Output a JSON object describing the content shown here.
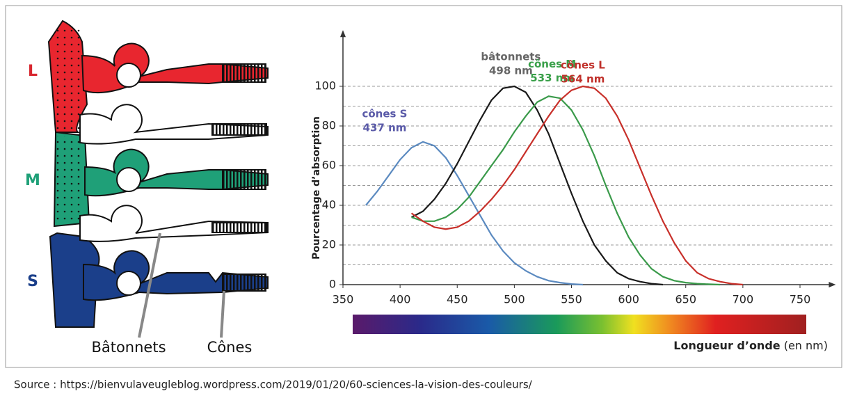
{
  "diagram": {
    "row_labels": [
      "L",
      "M",
      "S"
    ],
    "pointer_labels": [
      "Bâtonnets",
      "Cônes"
    ]
  },
  "chart_data": {
    "type": "line",
    "y_label": "Pourcentage d’absorption",
    "x_label": "Longueur d’onde",
    "x_unit": "(en nm)",
    "xlim": [
      350,
      760
    ],
    "ylim": [
      0,
      115
    ],
    "xticks": [
      350,
      400,
      450,
      500,
      550,
      600,
      650,
      700,
      750
    ],
    "yticks": [
      0,
      20,
      40,
      60,
      80,
      100
    ],
    "minor_yticks": [
      10,
      30,
      50,
      70,
      90
    ],
    "grid": true,
    "x": [
      370,
      380,
      390,
      400,
      410,
      420,
      430,
      440,
      450,
      460,
      470,
      480,
      490,
      500,
      510,
      520,
      530,
      540,
      550,
      560,
      570,
      580,
      590,
      600,
      610,
      620,
      630,
      640,
      650,
      660,
      670,
      680,
      690,
      700
    ],
    "series": [
      {
        "name": "cônes S",
        "peak": "437 nm",
        "color": "#5b8ac0",
        "label_color": "#5a5aa8",
        "values": [
          40,
          47,
          55,
          63,
          69,
          72,
          70,
          64,
          55,
          45,
          35,
          25,
          17,
          11,
          7,
          4,
          2,
          1,
          0.3,
          0,
          null,
          null,
          null,
          null,
          null,
          null,
          null,
          null,
          null,
          null,
          null,
          null,
          null,
          null
        ]
      },
      {
        "name": "bâtonnets",
        "peak": "498 nm",
        "color": "#1a1a1a",
        "label_color": "#666666",
        "values": [
          null,
          null,
          null,
          null,
          34,
          37,
          43,
          51,
          61,
          72,
          83,
          93,
          99,
          100,
          97,
          88,
          76,
          61,
          46,
          32,
          20,
          12,
          6,
          3,
          1.5,
          0.5,
          0,
          null,
          null,
          null,
          null,
          null,
          null,
          null
        ]
      },
      {
        "name": "cônes M",
        "peak": "533 nm",
        "color": "#3a9a4a",
        "label_color": "#3aa04a",
        "values": [
          null,
          null,
          null,
          null,
          34,
          32,
          32,
          34,
          38,
          44,
          52,
          60,
          68,
          77,
          85,
          92,
          95,
          94,
          88,
          78,
          65,
          50,
          36,
          24,
          15,
          8,
          4,
          2,
          1,
          0.5,
          0.2,
          0,
          null,
          null
        ]
      },
      {
        "name": "cônes L",
        "peak": "564 nm",
        "color": "#c8302a",
        "label_color": "#c0302a",
        "values": [
          null,
          null,
          null,
          null,
          36,
          32,
          29,
          28,
          29,
          32,
          37,
          43,
          50,
          58,
          67,
          76,
          85,
          93,
          98,
          100,
          99,
          94,
          85,
          73,
          59,
          45,
          32,
          21,
          12,
          6,
          3,
          1.5,
          0.5,
          0
        ]
      }
    ]
  },
  "source": "Source : https://bienvulaveugleblog.wordpress.com/2019/01/20/60-sciences-la-vision-des-couleurs/"
}
